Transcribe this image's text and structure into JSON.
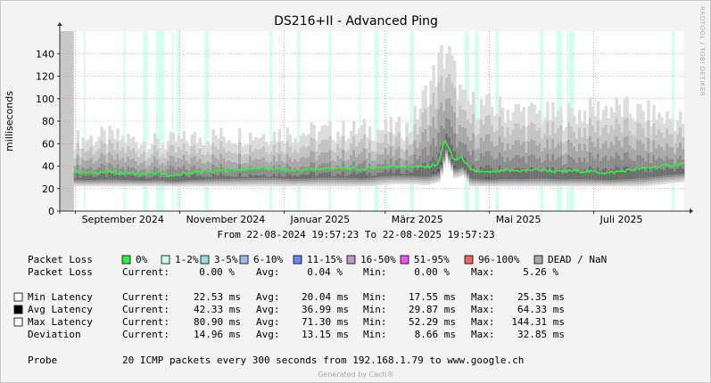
{
  "chart_data": {
    "type": "area",
    "title": "DS216+II - Advanced Ping",
    "ylabel": "milliseconds",
    "ylim": [
      0,
      160
    ],
    "yticks": [
      0,
      20,
      40,
      60,
      80,
      100,
      120,
      140
    ],
    "xlim": [
      "2024-08-22 19:57:23",
      "2025-08-22 19:57:23"
    ],
    "xticks": [
      {
        "date": "2024-09-01",
        "label": "September 2024"
      },
      {
        "date": "2024-11-01",
        "label": "November 2024"
      },
      {
        "date": "2025-01-01",
        "label": "Januar 2025"
      },
      {
        "date": "2025-03-01",
        "label": "März 2025"
      },
      {
        "date": "2025-05-01",
        "label": "Mai 2025"
      },
      {
        "date": "2025-07-01",
        "label": "Juli 2025"
      }
    ],
    "grid": true,
    "dead_until": "2024-08-31",
    "series": [
      {
        "name": "Avg Latency",
        "dates": [
          "2024-08-31",
          "2024-09-10",
          "2024-09-20",
          "2024-10-01",
          "2024-10-10",
          "2024-10-20",
          "2024-10-28",
          "2024-11-05",
          "2024-11-15",
          "2024-11-25",
          "2024-12-05",
          "2024-12-15",
          "2024-12-25",
          "2025-01-05",
          "2025-01-15",
          "2025-01-25",
          "2025-02-05",
          "2025-02-15",
          "2025-02-25",
          "2025-03-05",
          "2025-03-15",
          "2025-03-25",
          "2025-04-01",
          "2025-04-05",
          "2025-04-10",
          "2025-04-15",
          "2025-04-20",
          "2025-04-30",
          "2025-05-10",
          "2025-05-20",
          "2025-05-30",
          "2025-06-10",
          "2025-06-20",
          "2025-06-30",
          "2025-07-10",
          "2025-07-20",
          "2025-07-30",
          "2025-08-10",
          "2025-08-22"
        ],
        "values": [
          35,
          34,
          35,
          34,
          33,
          34,
          31,
          34,
          35,
          36,
          37,
          38,
          38,
          36,
          37,
          38,
          38,
          37,
          39,
          40,
          40,
          39,
          42,
          64,
          45,
          48,
          36,
          34,
          36,
          36,
          37,
          35,
          36,
          35,
          34,
          36,
          38,
          40,
          42
        ]
      },
      {
        "name": "Max Latency",
        "dates": [
          "2024-08-31",
          "2024-09-20",
          "2024-10-20",
          "2024-11-15",
          "2024-12-15",
          "2025-01-15",
          "2025-02-15",
          "2025-03-15",
          "2025-04-05",
          "2025-04-15",
          "2025-05-10",
          "2025-06-10",
          "2025-07-10",
          "2025-08-22"
        ],
        "values": [
          64,
          66,
          60,
          66,
          68,
          70,
          72,
          74,
          144,
          96,
          90,
          84,
          92,
          80
        ]
      }
    ]
  },
  "axis_labels": {
    "title": "DS216+II - Advanced Ping",
    "ylabel": "milliseconds",
    "side": "RRDTOOL / TOBI OETIKER"
  },
  "legend": {
    "range_text": "From 22-08-2024 19:57:23 To 22-08-2025 19:57:23",
    "packet_loss_label": "Packet Loss",
    "packet_loss_swatches": [
      {
        "label": "0%",
        "color": "#33ee44"
      },
      {
        "label": "1-2%",
        "color": "#ccffee"
      },
      {
        "label": "3-5%",
        "color": "#99dddd"
      },
      {
        "label": "6-10%",
        "color": "#99bbee"
      },
      {
        "label": "11-15%",
        "color": "#6688ee"
      },
      {
        "label": "16-50%",
        "color": "#bb99cc"
      },
      {
        "label": "51-95%",
        "color": "#ee55ee"
      },
      {
        "label": "96-100%",
        "color": "#ee6666"
      },
      {
        "label": "DEAD / NaN",
        "color": "#aaaaaa"
      }
    ],
    "loss_stats": {
      "current": "0.00 %",
      "avg": "0.04 %",
      "min": "0.00 %",
      "max": "5.26 %"
    },
    "stat_labels": {
      "current": "Current:",
      "avg": "Avg:",
      "min": "Min:",
      "max": "Max:"
    },
    "rows": [
      {
        "label": "Min Latency",
        "swatch": "#ffffff",
        "current": "22.53 ms",
        "avg": "20.04 ms",
        "min": "17.55 ms",
        "max": "25.35 ms"
      },
      {
        "label": "Avg Latency",
        "swatch": "#000000",
        "current": "42.33 ms",
        "avg": "36.99 ms",
        "min": "29.87 ms",
        "max": "64.33 ms"
      },
      {
        "label": "Max Latency",
        "swatch": "#ffffff",
        "current": "80.90 ms",
        "avg": "71.30 ms",
        "min": "52.29 ms",
        "max": "144.31 ms"
      },
      {
        "label": "Deviation",
        "swatch": "",
        "current": "14.96 ms",
        "avg": "13.15 ms",
        "min": "8.66 ms",
        "max": "32.85 ms"
      }
    ],
    "probe_label": "Probe",
    "probe_text": "20 ICMP packets every 300 seconds from 192.168.1.79 to www.google.ch",
    "footer": "Generated by Cacti®"
  }
}
